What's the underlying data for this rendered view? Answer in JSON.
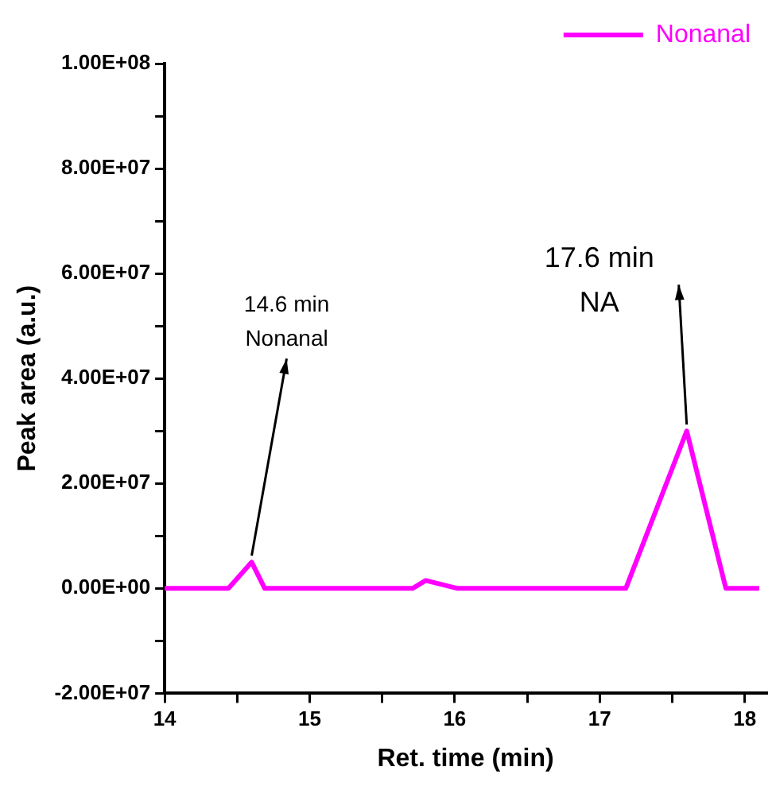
{
  "chart_data": {
    "type": "line",
    "xlabel": "Ret. time (min)",
    "ylabel": "Peak area (a.u.)",
    "x": [
      14.0,
      14.44,
      14.6,
      14.69,
      15.71,
      15.8,
      16.02,
      17.18,
      17.6,
      17.87,
      18.1
    ],
    "series": [
      {
        "name": "Nonanal",
        "color": "#ff00ff",
        "values": [
          0,
          0,
          5000000,
          0,
          0,
          1500000,
          0,
          0,
          30000000,
          0,
          0
        ]
      }
    ],
    "xlim": [
      14,
      18.15
    ],
    "ylim": [
      -20000000,
      100000000
    ],
    "xticks": [
      14,
      {
        "value": 14.5,
        "label": null
      },
      15,
      {
        "value": 15.5,
        "label": null
      },
      16,
      {
        "value": 16.5,
        "label": null
      },
      17,
      {
        "value": 17.5,
        "label": null
      },
      18
    ],
    "yticks": [
      {
        "value": -20000000,
        "label": "-2.00E+07"
      },
      {
        "value": -10000000,
        "label": null
      },
      {
        "value": 0,
        "label": "0.00E+00"
      },
      {
        "value": 10000000,
        "label": null
      },
      {
        "value": 20000000,
        "label": "2.00E+07"
      },
      {
        "value": 30000000,
        "label": null
      },
      {
        "value": 40000000,
        "label": "4.00E+07"
      },
      {
        "value": 50000000,
        "label": null
      },
      {
        "value": 60000000,
        "label": "6.00E+07"
      },
      {
        "value": 70000000,
        "label": null
      },
      {
        "value": 80000000,
        "label": "8.00E+07"
      },
      {
        "value": 90000000,
        "label": null
      },
      {
        "value": 100000000,
        "label": "1.00E+08"
      }
    ],
    "annotations": [
      {
        "text": "14.6 min\nNonanal",
        "x": 14.6,
        "y": 5000000
      },
      {
        "text": "17.6 min\nNA",
        "x": 17.6,
        "y": 30000000
      }
    ],
    "grid": false,
    "legend": "top right",
    "marker": "none",
    "line_style": "solid"
  }
}
